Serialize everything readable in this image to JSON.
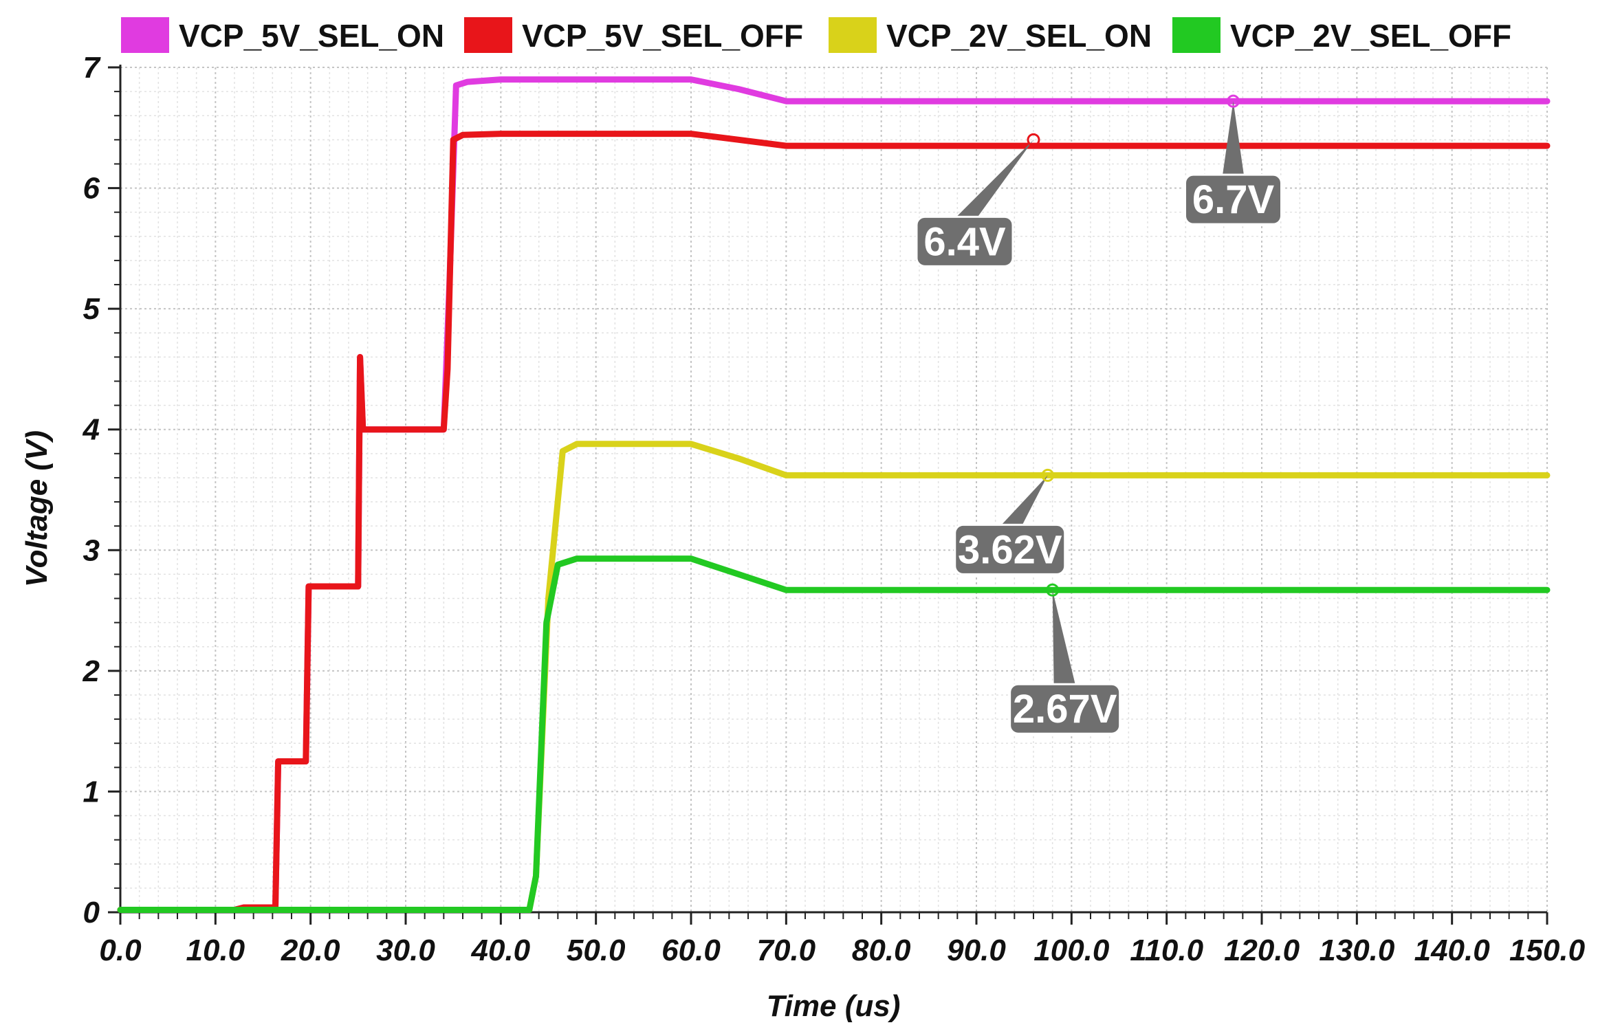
{
  "chart_data": {
    "type": "line",
    "xlabel": "Time (us)",
    "ylabel": "Voltage (V)",
    "xlim": [
      0,
      150
    ],
    "ylim": [
      0,
      7
    ],
    "grid": true,
    "legend_position": "top",
    "x_ticks": [
      "0.0",
      "10.0",
      "20.0",
      "30.0",
      "40.0",
      "50.0",
      "60.0",
      "70.0",
      "80.0",
      "90.0",
      "100.0",
      "110.0",
      "120.0",
      "130.0",
      "140.0",
      "150.0"
    ],
    "y_ticks": [
      "0",
      "1",
      "2",
      "3",
      "4",
      "5",
      "6",
      "7"
    ],
    "series": [
      {
        "name": "VCP_5V_SEL_ON",
        "color": "#e03be0",
        "x": [
          0,
          12,
          13,
          16.3,
          16.6,
          19.5,
          19.8,
          25,
          25.2,
          25.5,
          34,
          34.6,
          35.3,
          36.5,
          40,
          60,
          65,
          70,
          150
        ],
        "y": [
          0.02,
          0.02,
          0.04,
          0.04,
          1.25,
          1.25,
          2.7,
          2.7,
          4.6,
          4.0,
          4.0,
          5.2,
          6.85,
          6.88,
          6.9,
          6.9,
          6.82,
          6.72,
          6.72
        ]
      },
      {
        "name": "VCP_5V_SEL_OFF",
        "color": "#e8151a",
        "x": [
          0,
          12,
          13,
          16.3,
          16.6,
          19.5,
          19.8,
          25,
          25.2,
          25.5,
          34,
          34.4,
          35,
          36,
          40,
          60,
          65,
          70,
          150
        ],
        "y": [
          0.02,
          0.02,
          0.04,
          0.04,
          1.25,
          1.25,
          2.7,
          2.7,
          4.6,
          4.0,
          4.0,
          4.5,
          6.4,
          6.44,
          6.45,
          6.45,
          6.4,
          6.35,
          6.35
        ]
      },
      {
        "name": "VCP_2V_SEL_ON",
        "color": "#d9d21a",
        "x": [
          0,
          43,
          43.7,
          45,
          46.5,
          48,
          60,
          65,
          70,
          150
        ],
        "y": [
          0.02,
          0.02,
          0.3,
          2.6,
          3.82,
          3.88,
          3.88,
          3.76,
          3.62,
          3.62
        ]
      },
      {
        "name": "VCP_2V_SEL_OFF",
        "color": "#22c922",
        "x": [
          0,
          43,
          43.7,
          44.8,
          46,
          48,
          60,
          65,
          70,
          150
        ],
        "y": [
          0.02,
          0.02,
          0.3,
          2.4,
          2.88,
          2.93,
          2.93,
          2.8,
          2.67,
          2.67
        ]
      }
    ],
    "annotations": [
      {
        "label": "6.4V",
        "x": 96.0,
        "y": 6.4,
        "color": "#e8151a"
      },
      {
        "label": "6.7V",
        "x": 117.0,
        "y": 6.72,
        "color": "#e03be0"
      },
      {
        "label": "3.62V",
        "x": 97.5,
        "y": 3.62,
        "color": "#d9d21a"
      },
      {
        "label": "2.67V",
        "x": 98.0,
        "y": 2.67,
        "color": "#22c922"
      }
    ]
  }
}
